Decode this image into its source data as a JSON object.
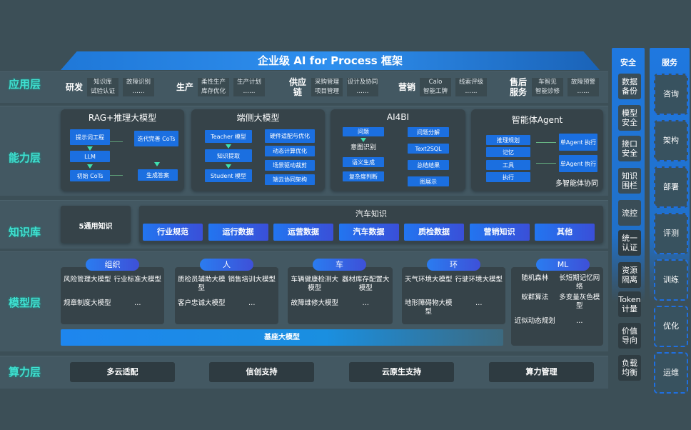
{
  "title": "企业级 AI for Process 框架",
  "layers": {
    "app": "应用层",
    "capability": "能力层",
    "knowledge": "知识库",
    "model": "模型层",
    "compute": "算力层"
  },
  "app_groups": [
    {
      "name": "研发",
      "cols": [
        [
          "知识库",
          "试验认证"
        ],
        [
          "故障识别",
          "……"
        ]
      ]
    },
    {
      "name": "生产",
      "cols": [
        [
          "柔性生产",
          "库存优化"
        ],
        [
          "生产计划",
          "……"
        ]
      ]
    },
    {
      "name": "供应链",
      "cols": [
        [
          "采购管理",
          "项目管理"
        ],
        [
          "设计及协同",
          "……"
        ]
      ]
    },
    {
      "name": "营销",
      "cols": [
        [
          "Calo",
          "智能工牌"
        ],
        [
          "线索评级",
          "……"
        ]
      ]
    },
    {
      "name": "售后服务",
      "cols": [
        [
          "车智见",
          "智能诊修"
        ],
        [
          "故障预警",
          "……"
        ]
      ]
    }
  ],
  "capability": {
    "rag": {
      "title": "RAG+推理大模型",
      "items": [
        "提示词工程",
        "LLM",
        "初始 CoTs",
        "迭代完善 CoTs",
        "生成答案"
      ]
    },
    "edge": {
      "title": "端侧大模型",
      "left": [
        "Teacher 模型",
        "知识提取",
        "Student 模型"
      ],
      "right": [
        "硬件适配与优化",
        "动态计算优化",
        "场景驱动裁剪",
        "端云协同架构"
      ]
    },
    "ai4bi": {
      "title": "AI4BI",
      "left": [
        "问题",
        "意图识别",
        "语义生成",
        "复杂度判断"
      ],
      "right": [
        "问题分解",
        "Text2SQL",
        "总结结果",
        "图展示"
      ]
    },
    "agent": {
      "title": "智能体Agent",
      "left": [
        "推理规划",
        "记忆",
        "工具",
        "执行"
      ],
      "right": [
        "单Agent 执行",
        "单Agent 执行"
      ],
      "footer": "多智能体协同"
    }
  },
  "knowledge": {
    "general": "5通用知识",
    "auto_title": "汽车知识",
    "items": [
      "行业规范",
      "运行数据",
      "运营数据",
      "汽车数据",
      "质检数据",
      "营销知识",
      "其他"
    ]
  },
  "model": {
    "groups": [
      {
        "name": "组织",
        "items": [
          "风险管理大模型",
          "行业标准大模型",
          "规章制度大模型",
          "…"
        ]
      },
      {
        "name": "人",
        "items": [
          "质检员辅助大模型",
          "销售培训大模型",
          "客户忠诚大模型",
          "…"
        ]
      },
      {
        "name": "车",
        "items": [
          "车辆健康检测大模型",
          "器材库存配置大模型",
          "故障维修大模型",
          "…"
        ]
      },
      {
        "name": "环",
        "items": [
          "天气环境大模型",
          "行驶环境大模型",
          "地形障碍物大模型",
          "…"
        ]
      },
      {
        "name": "ML",
        "items": [
          "随机森林",
          "长短期记忆网络",
          "蚁群算法",
          "多变量灰色模型",
          "近似动态规划",
          "…"
        ]
      }
    ],
    "base": "基座大模型"
  },
  "compute": [
    "多云适配",
    "信创支持",
    "云原生支持",
    "算力管理"
  ],
  "security": {
    "title": "安全",
    "items": [
      "数据备份",
      "模型安全",
      "接口安全",
      "知识围栏",
      "流控",
      "统一认证",
      "资源隔离",
      "Token计量",
      "价值导向",
      "负载均衡"
    ]
  },
  "service": {
    "title": "服务",
    "items": [
      "咨询",
      "架构",
      "部署",
      "评测",
      "训练",
      "优化",
      "运维"
    ]
  },
  "colors": {
    "accent": "#1b6fe0",
    "layer_label": "#3fe0d0",
    "background": "#3c4f57"
  }
}
